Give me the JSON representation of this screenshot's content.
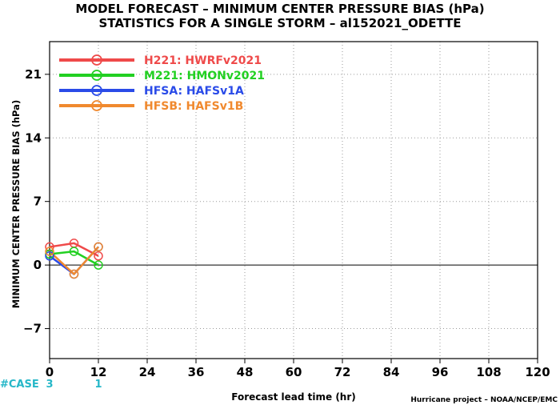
{
  "chart_data": {
    "type": "line",
    "title": "MODEL FORECAST – MINIMUM CENTER PRESSURE BIAS (hPa)",
    "subtitle": "STATISTICS FOR A SINGLE STORM – al152021_ODETTE",
    "xlabel": "Forecast lead time (hr)",
    "ylabel": "MINIMUM CENTER PRESSURE BIAS (hPa)",
    "xlim": [
      0,
      120
    ],
    "ylim": [
      -10.3,
      24.6
    ],
    "xticks": [
      0,
      12,
      24,
      36,
      48,
      60,
      72,
      84,
      96,
      108,
      120
    ],
    "yticks": [
      -7,
      0,
      7,
      14,
      21
    ],
    "grid": true,
    "legend_position": "top-left",
    "x": [
      0,
      6,
      12
    ],
    "series": [
      {
        "name": "H221:  HWRFv2021",
        "color": "#ef4a4a",
        "values": [
          2.0,
          2.4,
          1.0
        ]
      },
      {
        "name": "M221:  HMONv2021",
        "color": "#22d022",
        "values": [
          1.2,
          1.5,
          0.0
        ]
      },
      {
        "name": "HFSA:  HAFSv1A",
        "color": "#2a4be8",
        "values": [
          1.0,
          -1.0,
          2.0
        ]
      },
      {
        "name": "HFSB:  HAFSv1B",
        "color": "#f0892e",
        "values": [
          1.5,
          -1.0,
          2.0
        ]
      }
    ],
    "cases": {
      "label": "#CASE",
      "values": [
        {
          "x": 0,
          "n": "3"
        },
        {
          "x": 12,
          "n": "1"
        }
      ]
    },
    "credit": "Hurricane project – NOAA/NCEP/EMC"
  }
}
